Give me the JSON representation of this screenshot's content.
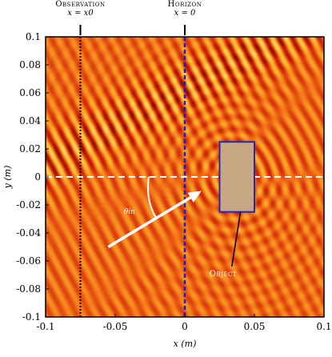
{
  "chart_data": {
    "type": "heatmap",
    "title": "",
    "xlabel": "x (m)",
    "ylabel": "y (m)",
    "xlim": [
      -0.1,
      0.1
    ],
    "ylim": [
      -0.1,
      0.1
    ],
    "x_ticks": [
      -0.1,
      -0.05,
      0,
      0.05,
      0.1
    ],
    "x_tick_labels": [
      "-0.1",
      "-0.05",
      "0",
      "0.05",
      "0.1"
    ],
    "y_ticks": [
      0.1,
      0.08,
      0.06,
      0.04,
      0.02,
      0,
      -0.02,
      -0.04,
      -0.06,
      -0.08,
      -0.1
    ],
    "y_tick_labels": [
      "0.1",
      "0.08",
      "0.06",
      "0.04",
      "0.02",
      "0",
      "-0.02",
      "-0.04",
      "-0.06",
      "-0.08",
      "-0.1"
    ],
    "field": {
      "colormap": [
        "#3a0d05",
        "#c81e0a",
        "#f06a14",
        "#ffb830",
        "#fff0a0"
      ],
      "incident_wavelength": 0.0085,
      "incident_angle_deg": 28,
      "scatter_center": [
        0.035,
        0.0
      ]
    },
    "observation_line": {
      "x": -0.075,
      "label_title": "Observation",
      "label_eq": "x = x0",
      "color": "#000000"
    },
    "horizon_line": {
      "x": 0,
      "label_title": "Horizon",
      "label_eq": "x = 0",
      "color": "#1a1acc"
    },
    "center_line": {
      "y": 0,
      "color": "#ffffff"
    },
    "object": {
      "x0": 0.025,
      "x1": 0.05,
      "y0": -0.025,
      "y1": 0.025,
      "label": "Object",
      "fill": "#c8a884",
      "stroke": "#2a2aa0"
    },
    "incidence": {
      "arrow_from": [
        -0.055,
        -0.05
      ],
      "arrow_to": [
        0.012,
        -0.01
      ],
      "angle_label": "θin",
      "color": "#ffffff"
    }
  }
}
